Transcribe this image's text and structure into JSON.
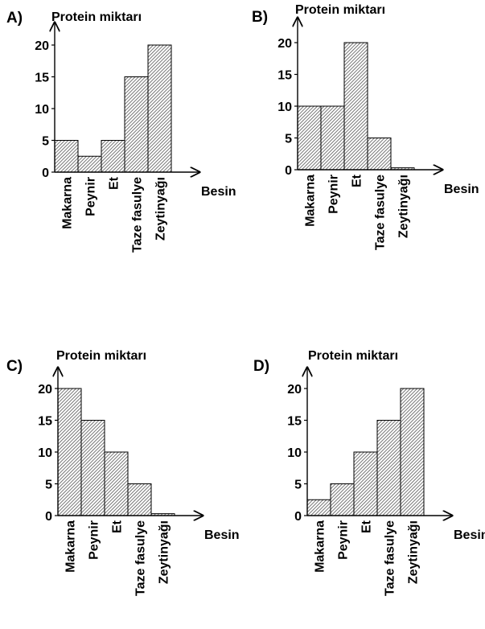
{
  "chart_data": [
    {
      "option": "A)",
      "type": "bar",
      "ylabel": "Protein miktarı",
      "xlabel": "Besin",
      "categories": [
        "Makarna",
        "Peynir",
        "Et",
        "Taze fasulye",
        "Zeytinyağı"
      ],
      "values": [
        5,
        2.5,
        5,
        15,
        20
      ],
      "yticks": [
        0,
        5,
        10,
        15,
        20
      ],
      "ylim": [
        0,
        22
      ]
    },
    {
      "option": "B)",
      "type": "bar",
      "ylabel": "Protein miktarı",
      "xlabel": "Besin",
      "categories": [
        "Makarna",
        "Peynir",
        "Et",
        "Taze fasulye",
        "Zeytinyağı"
      ],
      "values": [
        10,
        10,
        20,
        5,
        0.3
      ],
      "yticks": [
        0,
        5,
        10,
        15,
        20
      ],
      "ylim": [
        0,
        22
      ]
    },
    {
      "option": "C)",
      "type": "bar",
      "ylabel": "Protein miktarı",
      "xlabel": "Besin",
      "categories": [
        "Makarna",
        "Peynir",
        "Et",
        "Taze fasulye",
        "Zeytinyağı"
      ],
      "values": [
        20,
        15,
        10,
        5,
        0.3
      ],
      "yticks": [
        0,
        5,
        10,
        15,
        20
      ],
      "ylim": [
        0,
        22
      ]
    },
    {
      "option": "D)",
      "type": "bar",
      "ylabel": "Protein miktarı",
      "xlabel": "Besin",
      "categories": [
        "Makarna",
        "Peynir",
        "Et",
        "Taze fasulye",
        "Zeytinyağı"
      ],
      "values": [
        2.5,
        5,
        10,
        15,
        20
      ],
      "yticks": [
        0,
        5,
        10,
        15,
        20
      ],
      "ylim": [
        0,
        22
      ]
    }
  ]
}
